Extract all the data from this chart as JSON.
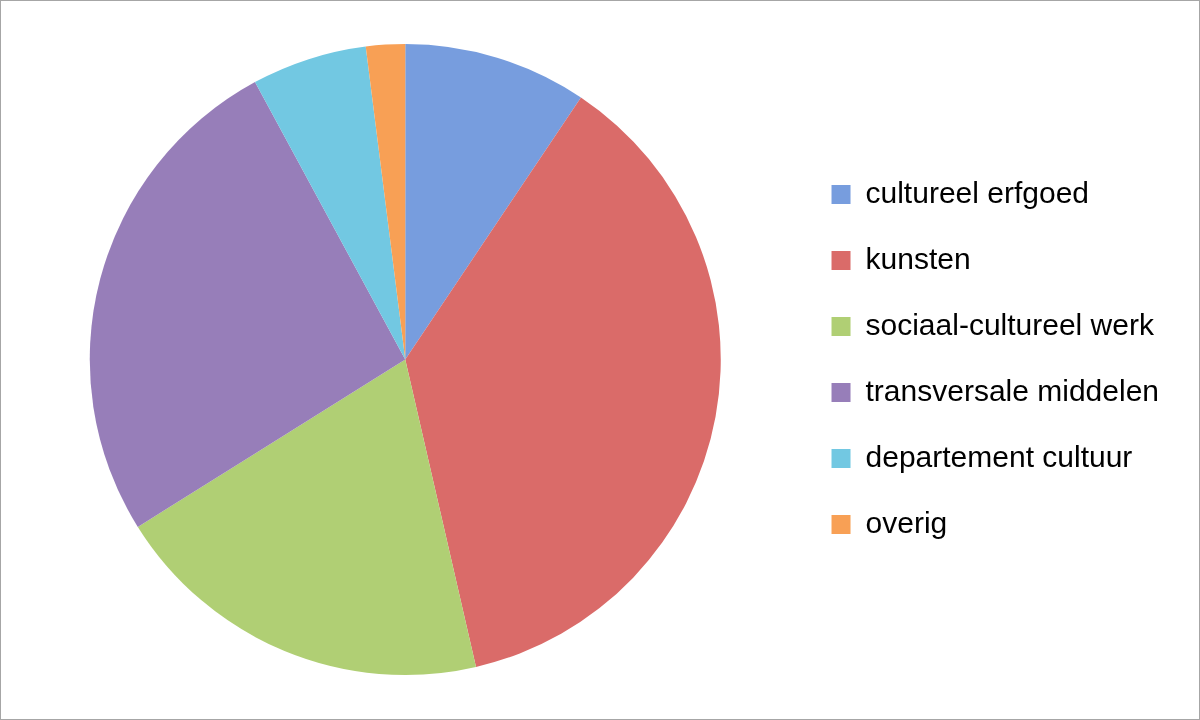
{
  "chart_data": {
    "type": "pie",
    "categories": [
      "cultureel erfgoed",
      "kunsten",
      "sociaal-cultureel werk",
      "transversale middelen",
      "departement cultuur",
      "overig"
    ],
    "values": [
      9.4,
      37.0,
      19.7,
      26.0,
      5.9,
      2.0
    ],
    "colors": [
      "#779dde",
      "#da6b69",
      "#b0cf74",
      "#977eb9",
      "#72c8e2",
      "#f8a055"
    ],
    "legend": "right"
  }
}
